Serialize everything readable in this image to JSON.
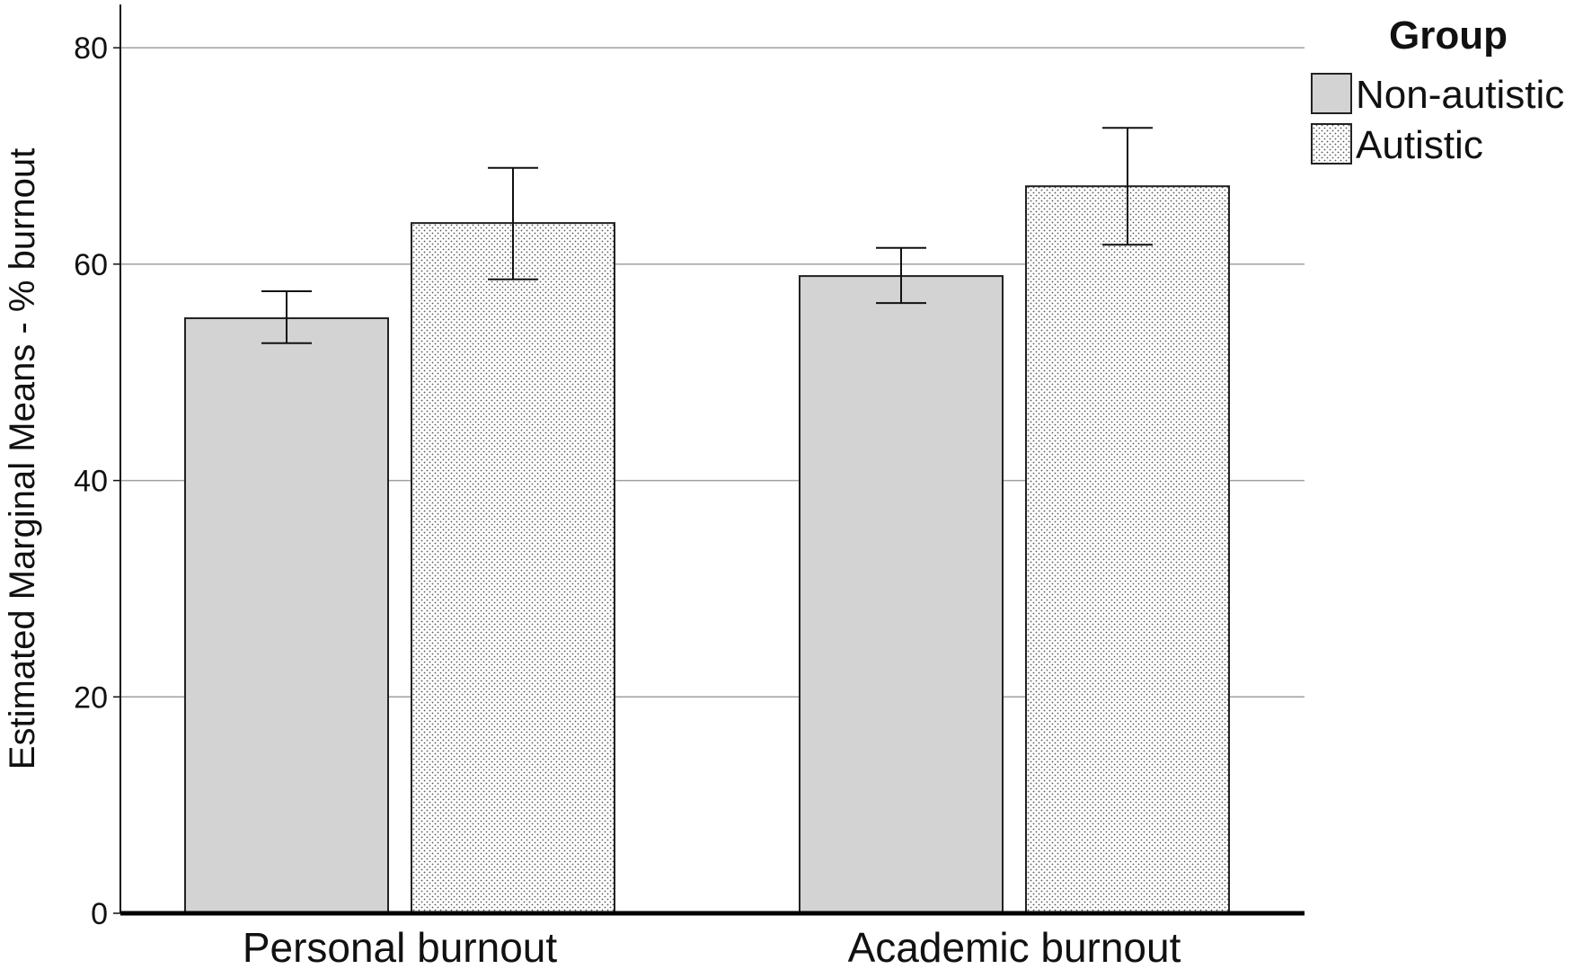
{
  "chart_data": {
    "type": "bar",
    "title": "",
    "xlabel": "",
    "ylabel": "Estimated Marginal Means - % burnout",
    "categories": [
      "Personal burnout",
      "Academic burnout"
    ],
    "series": [
      {
        "name": "Non-autistic",
        "values": [
          55.0,
          58.9
        ],
        "error_low": [
          52.7,
          56.4
        ],
        "error_high": [
          57.5,
          61.5
        ],
        "color": "#d3d3d3",
        "pattern": "solid"
      },
      {
        "name": "Autistic",
        "values": [
          63.8,
          67.2
        ],
        "error_low": [
          58.6,
          61.8
        ],
        "error_high": [
          68.9,
          72.6
        ],
        "color": "#ffffff",
        "pattern": "dotted"
      }
    ],
    "ylim": [
      0,
      84
    ],
    "yticks": [
      0,
      20,
      40,
      60,
      80
    ],
    "ytick_labels": [
      "0",
      "20",
      "40",
      "60",
      "80"
    ],
    "grid": true,
    "legend": {
      "title": "Group",
      "placement": "top-right",
      "entries": [
        "Non-autistic",
        "Autistic"
      ]
    }
  }
}
